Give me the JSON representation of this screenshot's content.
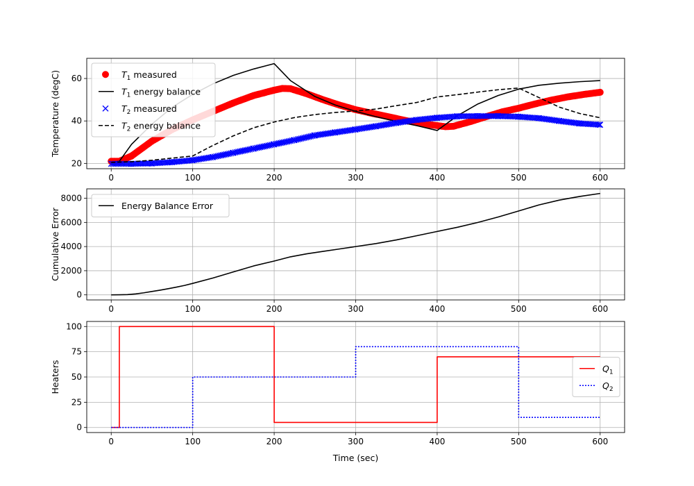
{
  "chart_data": [
    {
      "type": "line",
      "xlabel": "",
      "ylabel": "Temperature (degC)",
      "xlim": [
        -30,
        630
      ],
      "ylim": [
        17.5,
        69.5
      ],
      "xticks": [
        "0",
        "100",
        "200",
        "300",
        "400",
        "500",
        "600"
      ],
      "yticks": [
        "20",
        "40",
        "60"
      ],
      "grid": true,
      "legend": "upper-left",
      "series": [
        {
          "name": "T1 measured",
          "label_base": "T",
          "label_sub": "1",
          "label_rest": " measured",
          "style": "markers-circle",
          "color": "#ff0000",
          "x": [
            0,
            10,
            25,
            50,
            75,
            100,
            125,
            150,
            175,
            200,
            210,
            220,
            240,
            260,
            280,
            300,
            320,
            340,
            360,
            380,
            400,
            410,
            420,
            440,
            460,
            480,
            500,
            520,
            540,
            560,
            580,
            600
          ],
          "y": [
            21,
            21,
            23.5,
            30.5,
            36,
            40.5,
            44.5,
            48.5,
            52,
            54.5,
            55.3,
            55.2,
            52.8,
            50,
            47.5,
            45.3,
            43.6,
            42,
            40.3,
            38.8,
            37.8,
            37.3,
            37.5,
            39.6,
            42,
            44.3,
            46,
            48,
            49.8,
            51.3,
            52.5,
            53.5
          ]
        },
        {
          "name": "T1 energy balance",
          "label_base": "T",
          "label_sub": "1",
          "label_rest": " energy balance",
          "style": "solid",
          "color": "#000000",
          "x": [
            0,
            10,
            25,
            50,
            75,
            100,
            125,
            150,
            175,
            200,
            220,
            250,
            275,
            300,
            325,
            350,
            375,
            400,
            425,
            450,
            475,
            500,
            525,
            550,
            575,
            600
          ],
          "y": [
            20.5,
            21,
            29,
            38.5,
            46.5,
            52.5,
            57.5,
            61.5,
            64.5,
            67,
            59,
            51.5,
            47.5,
            44.5,
            42,
            39.8,
            37.8,
            35.5,
            42.5,
            48,
            52,
            55,
            56.8,
            57.8,
            58.5,
            59
          ]
        },
        {
          "name": "T2 measured",
          "label_base": "T",
          "label_sub": "2",
          "label_rest": " measured",
          "style": "markers-x",
          "color": "#0000ff",
          "x": [
            0,
            25,
            50,
            75,
            100,
            125,
            150,
            175,
            200,
            225,
            250,
            275,
            300,
            325,
            350,
            375,
            400,
            425,
            450,
            475,
            500,
            525,
            550,
            575,
            600
          ],
          "y": [
            19.8,
            19.8,
            20,
            20.6,
            21.5,
            23,
            25,
            27,
            29,
            31,
            33.2,
            34.6,
            36,
            37.5,
            39.1,
            40.5,
            41.5,
            42.2,
            42.3,
            42.3,
            42,
            41.3,
            40,
            38.8,
            38.2
          ]
        },
        {
          "name": "T2 energy balance",
          "label_base": "T",
          "label_sub": "2",
          "label_rest": " energy balance",
          "style": "dashed",
          "color": "#000000",
          "x": [
            0,
            25,
            50,
            75,
            100,
            125,
            150,
            175,
            200,
            225,
            250,
            275,
            300,
            325,
            350,
            375,
            400,
            425,
            450,
            475,
            500,
            525,
            550,
            575,
            600
          ],
          "y": [
            20.5,
            20.8,
            21.5,
            22.5,
            23.5,
            28.5,
            33,
            36.8,
            39.5,
            41.6,
            43,
            44,
            44.7,
            45.6,
            47.2,
            48.7,
            51.3,
            52.4,
            53.6,
            54.7,
            55.5,
            51,
            46.5,
            43.5,
            41.5
          ]
        }
      ]
    },
    {
      "type": "line",
      "xlabel": "",
      "ylabel": "Cumulative Error",
      "xlim": [
        -30,
        630
      ],
      "ylim": [
        -420,
        8780
      ],
      "xticks": [
        "0",
        "100",
        "200",
        "300",
        "400",
        "500",
        "600"
      ],
      "yticks": [
        "0",
        "2000",
        "4000",
        "6000",
        "8000"
      ],
      "grid": true,
      "legend": "upper-left",
      "series": [
        {
          "name": "Energy Balance Error",
          "label_base": "Energy Balance Error",
          "label_sub": "",
          "label_rest": "",
          "style": "solid",
          "color": "#000000",
          "x": [
            0,
            10,
            20,
            30,
            40,
            50,
            60,
            70,
            80,
            90,
            100,
            125,
            150,
            175,
            200,
            220,
            240,
            260,
            280,
            300,
            325,
            350,
            375,
            400,
            425,
            450,
            475,
            500,
            525,
            550,
            575,
            600
          ],
          "y": [
            0,
            5,
            20,
            80,
            170,
            280,
            390,
            510,
            640,
            780,
            950,
            1400,
            1900,
            2400,
            2800,
            3150,
            3400,
            3600,
            3800,
            4000,
            4250,
            4550,
            4900,
            5250,
            5600,
            6000,
            6450,
            6950,
            7450,
            7850,
            8150,
            8400
          ]
        }
      ]
    },
    {
      "type": "line",
      "xlabel": "Time (sec)",
      "ylabel": "Heaters",
      "xlim": [
        -30,
        630
      ],
      "ylim": [
        -5,
        105
      ],
      "xticks": [
        "0",
        "100",
        "200",
        "300",
        "400",
        "500",
        "600"
      ],
      "yticks": [
        "0",
        "25",
        "50",
        "75",
        "100"
      ],
      "grid": true,
      "legend": "center-right",
      "series": [
        {
          "name": "Q1",
          "label_base": "Q",
          "label_sub": "1",
          "label_rest": "",
          "style": "solid",
          "color": "#ff0000",
          "x": [
            0,
            10,
            10,
            200,
            200,
            400,
            400,
            600
          ],
          "y": [
            0,
            0,
            100,
            100,
            5,
            5,
            70,
            70
          ]
        },
        {
          "name": "Q2",
          "label_base": "Q",
          "label_sub": "2",
          "label_rest": "",
          "style": "dotted",
          "color": "#0000ff",
          "x": [
            0,
            100,
            100,
            300,
            300,
            500,
            500,
            600
          ],
          "y": [
            0,
            0,
            50,
            50,
            80,
            80,
            10,
            10
          ]
        }
      ]
    }
  ]
}
